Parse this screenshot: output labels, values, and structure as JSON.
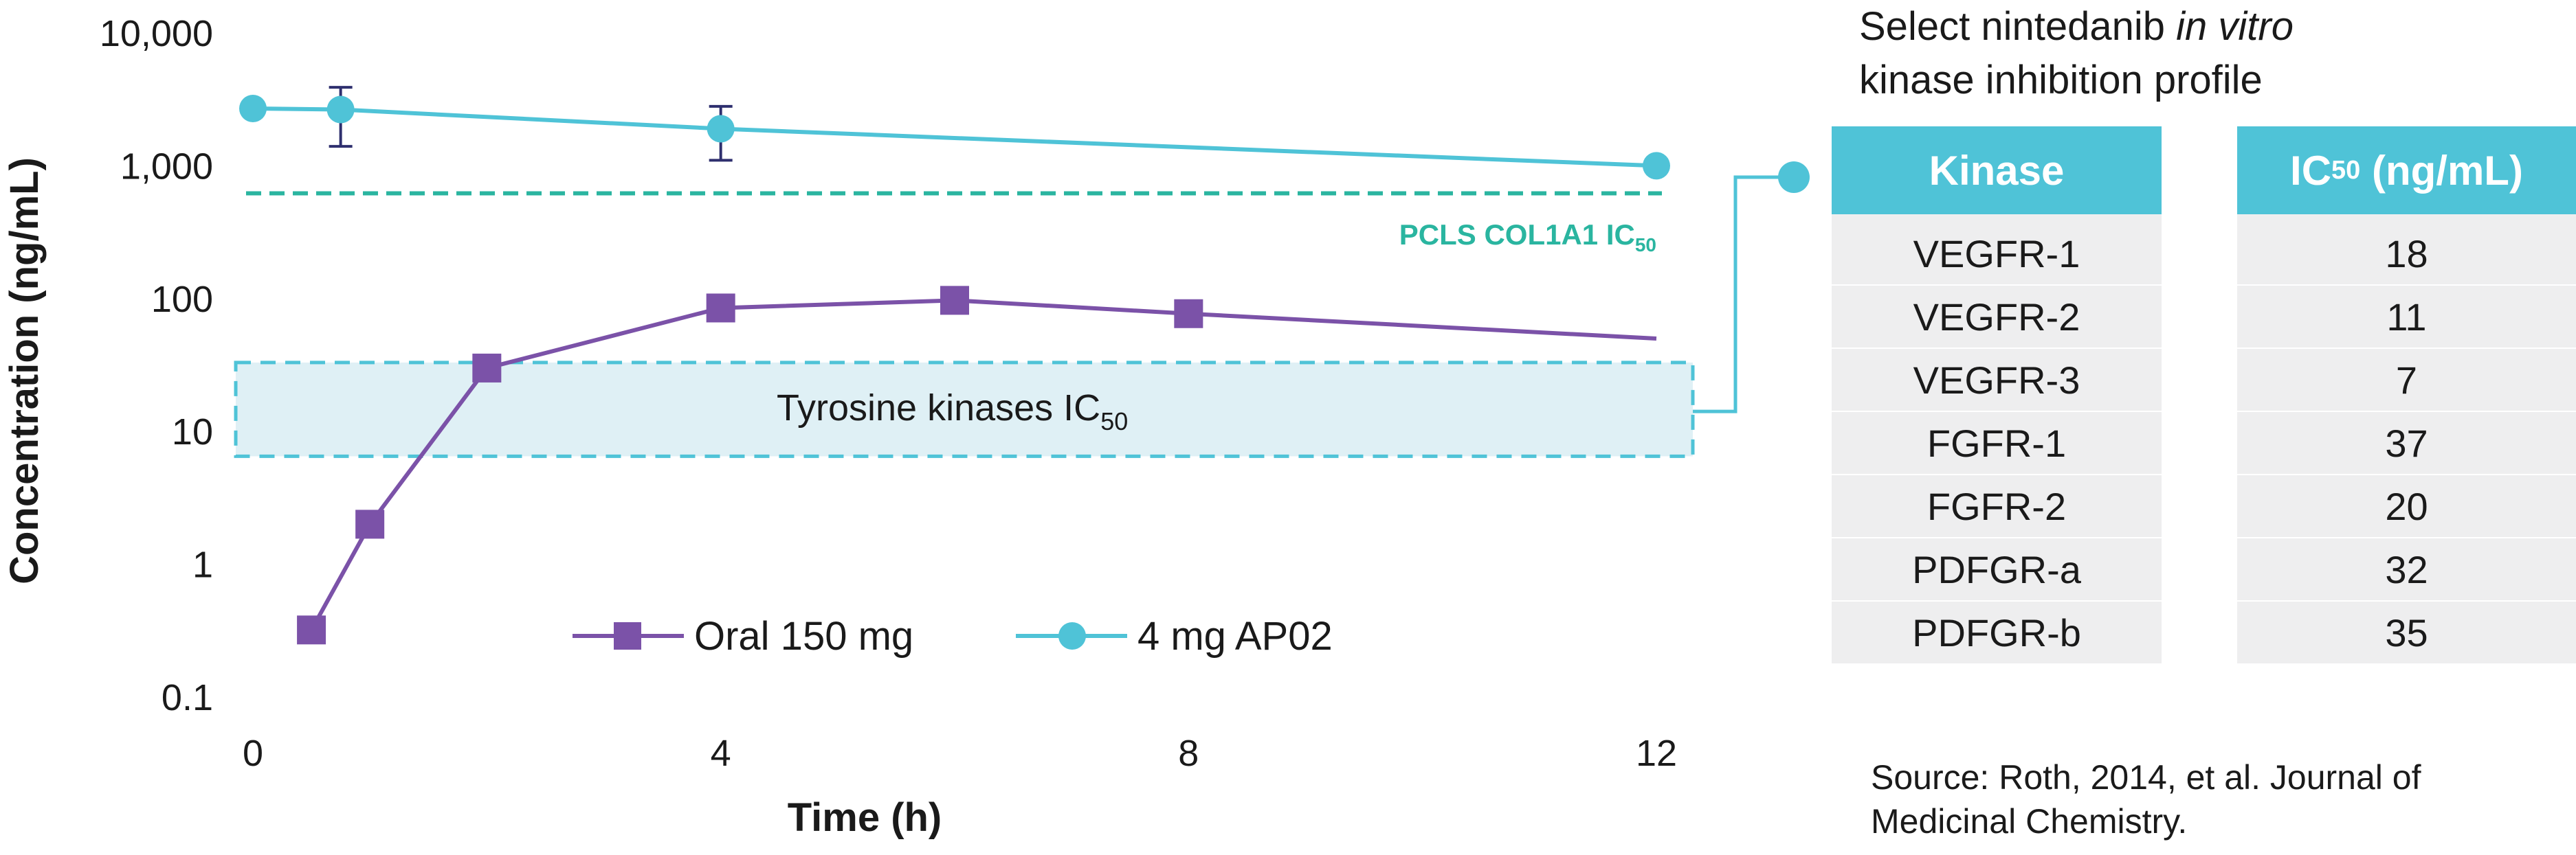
{
  "chart_data": {
    "type": "line",
    "x": [
      0,
      0.75,
      4,
      12
    ],
    "xlabel": "Time (h)",
    "ylabel": "Concentration (ng/mL)",
    "yscale": "log",
    "xlim": [
      0,
      12
    ],
    "ylim": [
      0.1,
      10000
    ],
    "x_ticks": [
      "0",
      "4",
      "8",
      "12"
    ],
    "y_ticks": [
      "0.1",
      "1",
      "10",
      "100",
      "1,000",
      "10,000"
    ],
    "series": [
      {
        "name": "Oral 150 mg",
        "color": "#7b52a8",
        "marker": "square",
        "points": [
          [
            0.5,
            0.32
          ],
          [
            1,
            2
          ],
          [
            2,
            30
          ],
          [
            4,
            85
          ],
          [
            6,
            97
          ],
          [
            8,
            77
          ],
          [
            12,
            50
          ]
        ],
        "marker_on": [
          true,
          true,
          true,
          true,
          true,
          true,
          false
        ]
      },
      {
        "name": "4 mg AP02",
        "color": "#4fc3d7",
        "marker": "circle",
        "points": [
          [
            0,
            2700
          ],
          [
            0.75,
            2650
          ],
          [
            4,
            1900
          ],
          [
            12,
            1000
          ]
        ],
        "error": [
          null,
          [
            1400,
            3900
          ],
          [
            1100,
            2800
          ],
          null
        ]
      }
    ],
    "reference_line": {
      "value": 620,
      "label": "PCLS COL1A1 IC",
      "label_sub": "50",
      "color": "#2ab5a0"
    },
    "band": {
      "low": 6.5,
      "high": 33,
      "label": "Tyrosine kinases IC",
      "label_sub": "50",
      "color": "#4fc3d7"
    },
    "legend_position": "bottom-center"
  },
  "panel": {
    "title_line1_a": "Select nintedanib ",
    "title_line1_b": "in vitro",
    "title_line2": "kinase inhibition profile",
    "kinase_header": "Kinase",
    "ic50_header_a": "IC",
    "ic50_header_sub": "50",
    "ic50_header_b": " (ng/mL)",
    "rows": [
      {
        "kinase": "VEGFR-1",
        "ic50": "18"
      },
      {
        "kinase": "VEGFR-2",
        "ic50": "11"
      },
      {
        "kinase": "VEGFR-3",
        "ic50": "7"
      },
      {
        "kinase": "FGFR-1",
        "ic50": "37"
      },
      {
        "kinase": "FGFR-2",
        "ic50": "20"
      },
      {
        "kinase": "PDFGR-a",
        "ic50": "32"
      },
      {
        "kinase": "PDFGR-b",
        "ic50": "35"
      }
    ],
    "source": "Source: Roth, 2014, et al. Journal of Medicinal Chemistry."
  }
}
